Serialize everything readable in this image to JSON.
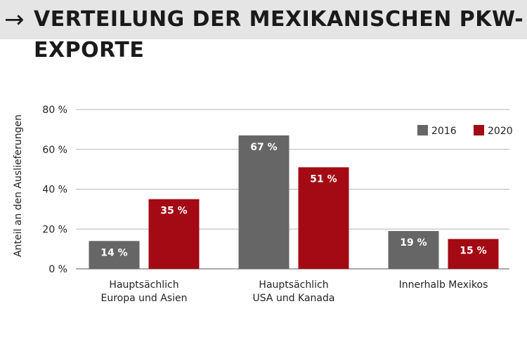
{
  "header": {
    "arrow_icon": "arrow-right-icon",
    "title": "VERTEILUNG DER MEXIKANISCHEN PKW-EXPORTE"
  },
  "chart_data": {
    "type": "bar",
    "categories": [
      [
        "Hauptsächlich",
        "Europa und Asien"
      ],
      [
        "Hauptsächlich",
        "USA und Kanada"
      ],
      [
        "Innerhalb Mexikos"
      ]
    ],
    "series": [
      {
        "name": "2016",
        "color": "#666666",
        "values": [
          14,
          67,
          19
        ],
        "labels": [
          "14 %",
          "67 %",
          "19 %"
        ]
      },
      {
        "name": "2020",
        "color": "#a30a14",
        "values": [
          35,
          51,
          15
        ],
        "labels": [
          "35 %",
          "51 %",
          "15 %"
        ]
      }
    ],
    "ylabel": "Anteil an den Auslieferungen",
    "ylim": [
      0,
      80
    ],
    "yticks": [
      0,
      20,
      40,
      60,
      80
    ],
    "ytick_labels": [
      "0 %",
      "20 %",
      "40 %",
      "60 %",
      "80 %"
    ],
    "grid": true,
    "legend_position": "top-right"
  }
}
